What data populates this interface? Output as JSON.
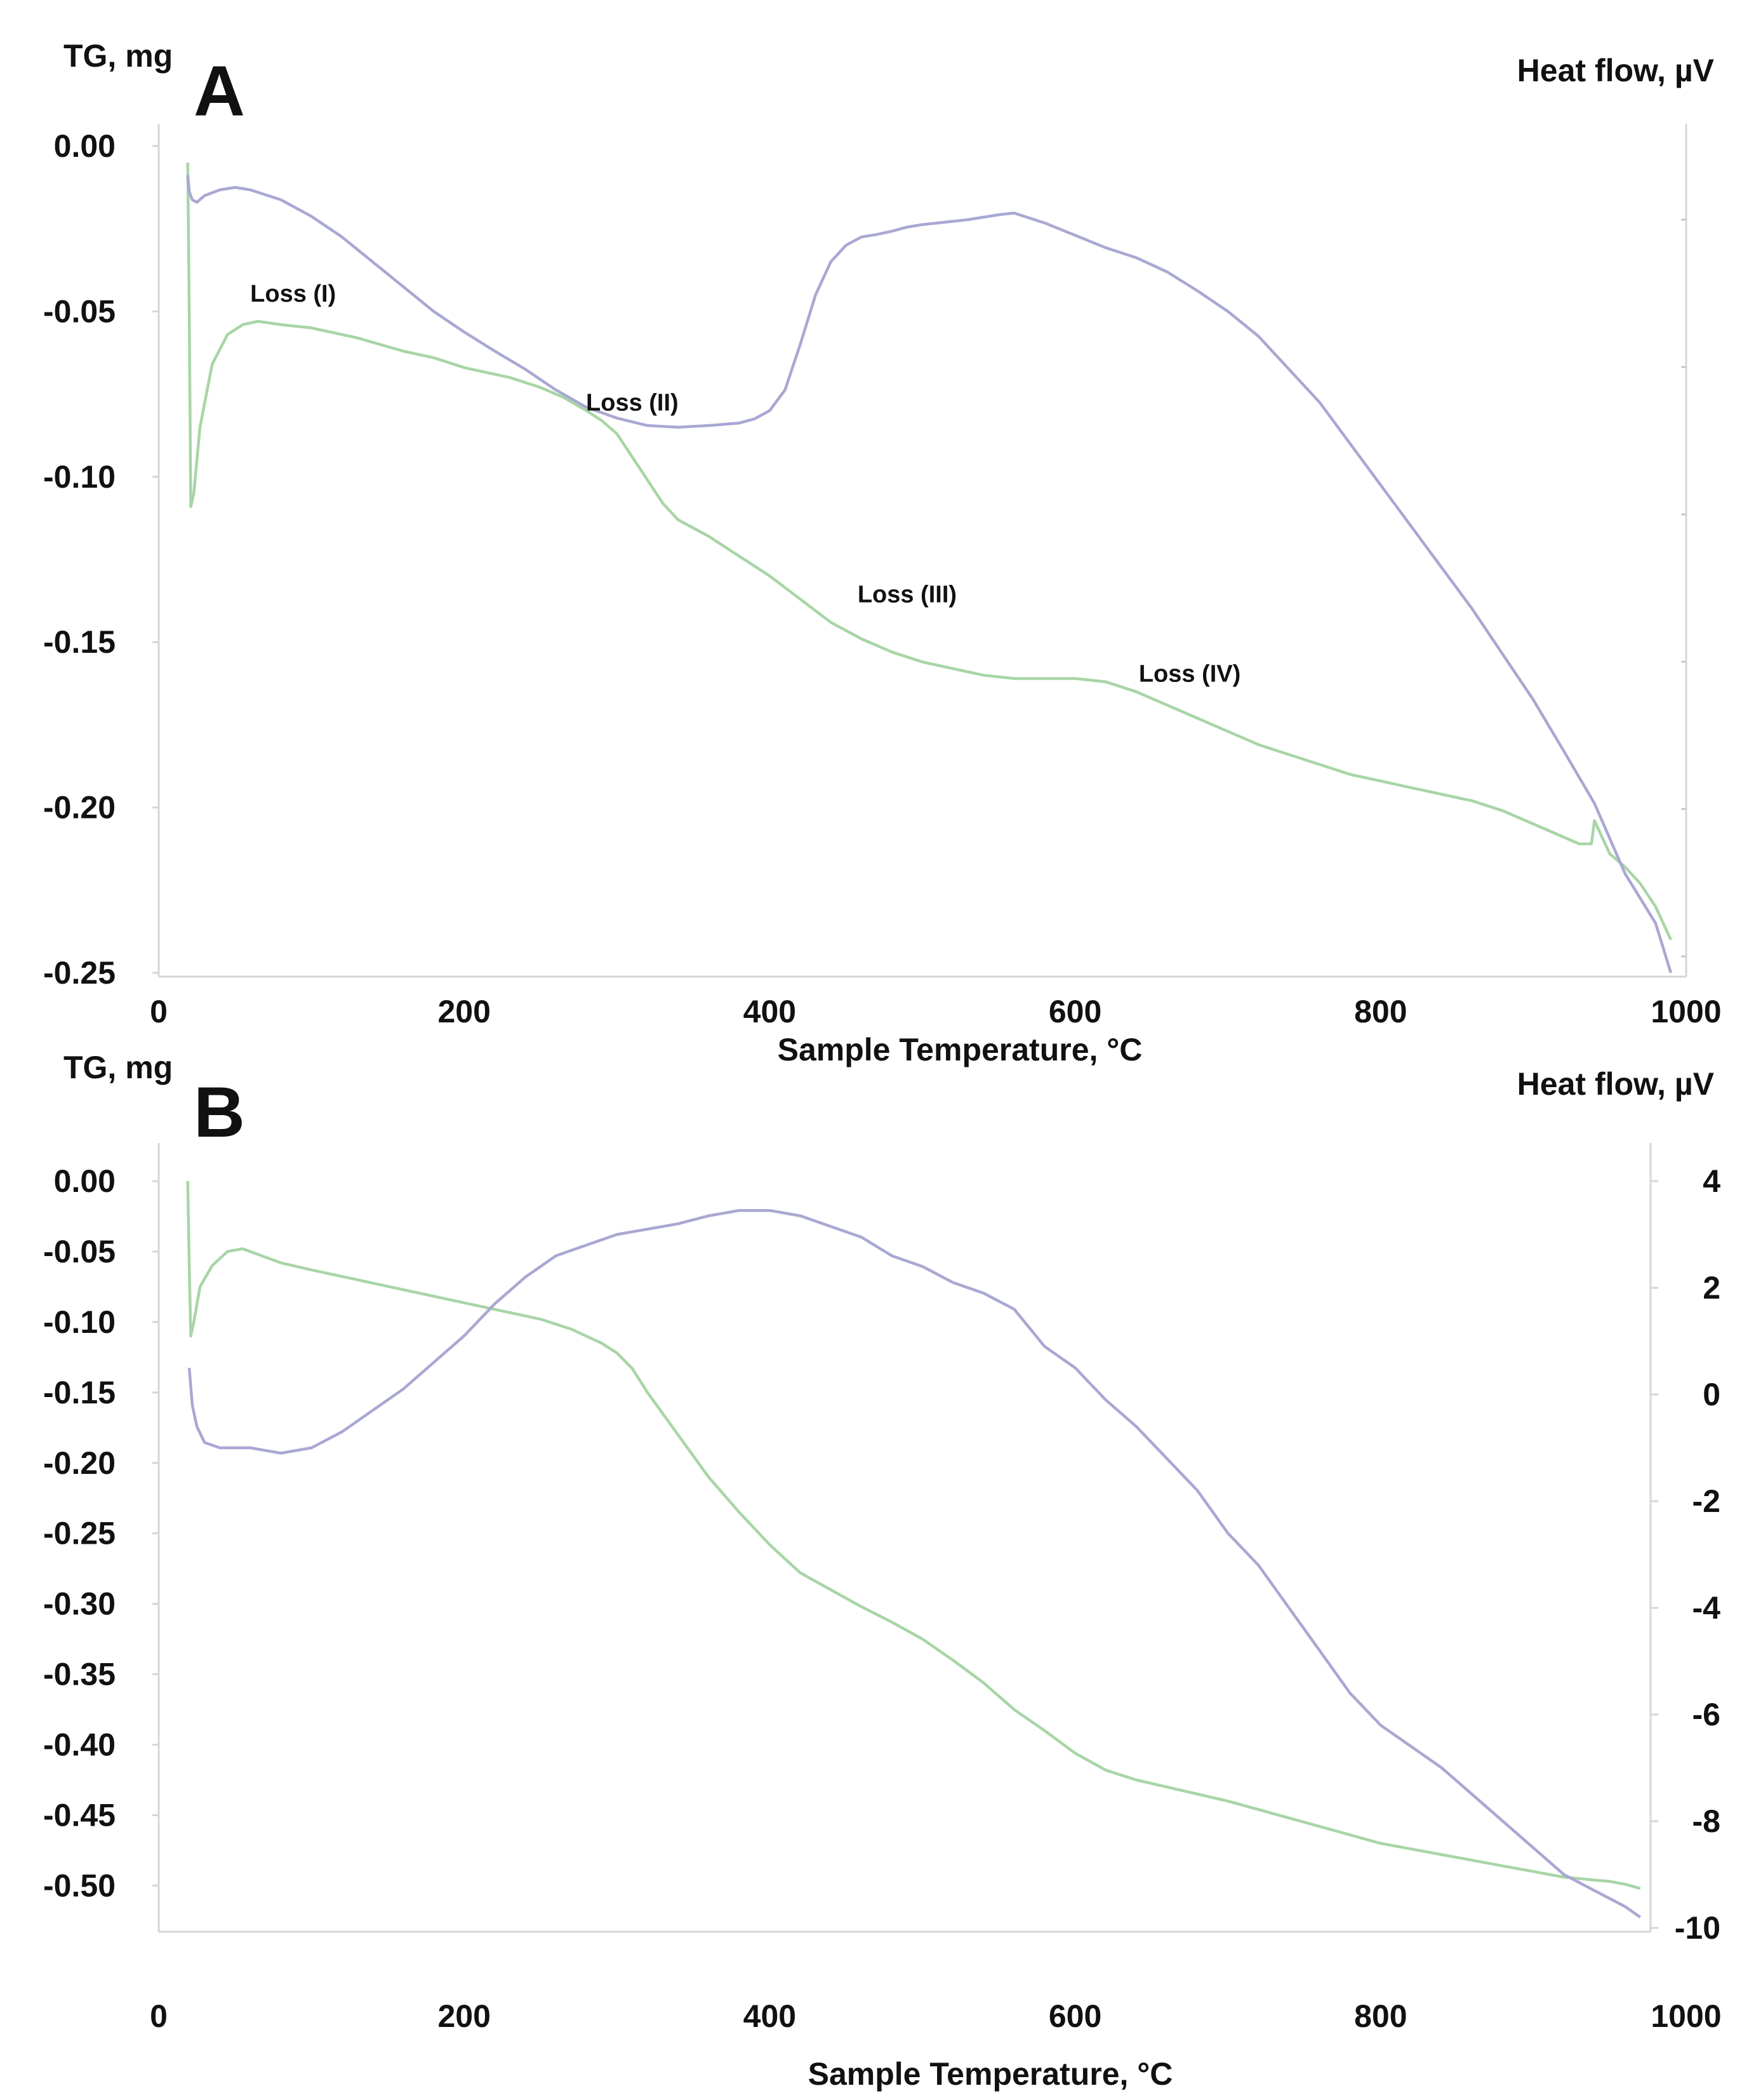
{
  "chart_data": [
    {
      "panel": "A",
      "type": "line",
      "xlabel": "Sample Temperature, °C",
      "ylabel_left": "TG, mg",
      "ylabel_right": "Heat flow, µV",
      "xlim": [
        0,
        1000
      ],
      "ylim_left": [
        -0.25,
        0.0
      ],
      "ylim_right": [
        0,
        1
      ],
      "x_ticks": [
        "0",
        "200",
        "400",
        "600",
        "800",
        "1000"
      ],
      "y_ticks_left": [
        "0.00",
        "-0.05",
        "-0.10",
        "-0.15",
        "-0.20",
        "-0.25"
      ],
      "y_ticks_right": [],
      "annotations": [
        {
          "text": "Loss (I)",
          "x": 88,
          "y": -0.047
        },
        {
          "text": "Loss (II)",
          "x": 310,
          "y": -0.08
        },
        {
          "text": "Loss (III)",
          "x": 490,
          "y": -0.138
        },
        {
          "text": "Loss (IV)",
          "x": 675,
          "y": -0.162
        }
      ],
      "series": [
        {
          "name": "TG",
          "axis": "left",
          "color": "#a8d5a6",
          "x": [
            19,
            20,
            21,
            23,
            27,
            35,
            45,
            55,
            65,
            80,
            100,
            130,
            160,
            180,
            200,
            230,
            250,
            265,
            280,
            290,
            300,
            310,
            320,
            330,
            340,
            360,
            380,
            400,
            420,
            440,
            460,
            480,
            500,
            520,
            540,
            560,
            580,
            600,
            620,
            640,
            660,
            680,
            700,
            720,
            740,
            760,
            780,
            800,
            820,
            840,
            860,
            880,
            900,
            920,
            930,
            938,
            940,
            945,
            950,
            960,
            970,
            980,
            990
          ],
          "values": [
            -0.005,
            -0.05,
            -0.109,
            -0.105,
            -0.085,
            -0.066,
            -0.057,
            -0.054,
            -0.053,
            -0.054,
            -0.055,
            -0.058,
            -0.062,
            -0.064,
            -0.067,
            -0.07,
            -0.073,
            -0.076,
            -0.08,
            -0.083,
            -0.087,
            -0.094,
            -0.101,
            -0.108,
            -0.113,
            -0.118,
            -0.124,
            -0.13,
            -0.137,
            -0.144,
            -0.149,
            -0.153,
            -0.156,
            -0.158,
            -0.16,
            -0.161,
            -0.161,
            -0.161,
            -0.162,
            -0.165,
            -0.169,
            -0.173,
            -0.177,
            -0.181,
            -0.184,
            -0.187,
            -0.19,
            -0.192,
            -0.194,
            -0.196,
            -0.198,
            -0.201,
            -0.205,
            -0.209,
            -0.211,
            -0.211,
            -0.204,
            -0.209,
            -0.214,
            -0.218,
            -0.223,
            -0.23,
            -0.24
          ]
        },
        {
          "name": "Heat flow",
          "axis": "right",
          "color": "#a9a8d3",
          "x": [
            19,
            20,
            22,
            25,
            30,
            40,
            50,
            60,
            80,
            100,
            120,
            140,
            160,
            180,
            200,
            220,
            240,
            260,
            280,
            300,
            320,
            340,
            360,
            380,
            390,
            400,
            410,
            420,
            430,
            440,
            450,
            460,
            470,
            480,
            490,
            500,
            510,
            520,
            530,
            540,
            550,
            560,
            580,
            600,
            620,
            640,
            660,
            680,
            700,
            720,
            740,
            760,
            780,
            800,
            820,
            840,
            860,
            880,
            900,
            920,
            940,
            960,
            980,
            990
          ],
          "values": [
            0.965,
            0.945,
            0.935,
            0.932,
            0.94,
            0.947,
            0.95,
            0.947,
            0.935,
            0.915,
            0.89,
            0.86,
            0.83,
            0.8,
            0.775,
            0.752,
            0.73,
            0.705,
            0.684,
            0.671,
            0.662,
            0.66,
            0.662,
            0.665,
            0.67,
            0.68,
            0.705,
            0.76,
            0.82,
            0.86,
            0.88,
            0.89,
            0.893,
            0.897,
            0.902,
            0.905,
            0.907,
            0.909,
            0.911,
            0.914,
            0.917,
            0.919,
            0.907,
            0.892,
            0.877,
            0.865,
            0.848,
            0.825,
            0.8,
            0.77,
            0.73,
            0.69,
            0.64,
            0.59,
            0.54,
            0.49,
            0.44,
            0.385,
            0.33,
            0.268,
            0.205,
            0.12,
            0.06,
            0.0
          ]
        }
      ]
    },
    {
      "panel": "B",
      "type": "line",
      "xlabel": "Sample Temperature, °C",
      "ylabel_left": "TG, mg",
      "ylabel_right": "Heat flow, µV",
      "xlim": [
        0,
        1000
      ],
      "ylim_left": [
        -0.53,
        0.0
      ],
      "ylim_right": [
        -10,
        4
      ],
      "x_ticks": [
        "0",
        "200",
        "400",
        "600",
        "800",
        "1000"
      ],
      "y_ticks_left": [
        "0.00",
        "-0.05",
        "-0.10",
        "-0.15",
        "-0.20",
        "-0.25",
        "-0.30",
        "-0.35",
        "-0.40",
        "-0.45",
        "-0.50"
      ],
      "y_ticks_right": [
        "4",
        "2",
        "0",
        "-2",
        "-4",
        "-6",
        "-8",
        "-10"
      ],
      "annotations": [],
      "series": [
        {
          "name": "TG",
          "axis": "left",
          "color": "#a8d5a6",
          "x": [
            19,
            20,
            21,
            23,
            27,
            35,
            45,
            55,
            65,
            80,
            100,
            130,
            160,
            190,
            220,
            250,
            270,
            290,
            300,
            310,
            320,
            340,
            360,
            380,
            400,
            420,
            440,
            460,
            480,
            500,
            520,
            540,
            560,
            580,
            600,
            620,
            640,
            660,
            680,
            700,
            720,
            740,
            760,
            780,
            800,
            820,
            840,
            860,
            880,
            900,
            920,
            940,
            950,
            960,
            970
          ],
          "values": [
            0.0,
            -0.06,
            -0.11,
            -0.1,
            -0.075,
            -0.06,
            -0.05,
            -0.048,
            -0.052,
            -0.058,
            -0.063,
            -0.07,
            -0.077,
            -0.084,
            -0.091,
            -0.098,
            -0.105,
            -0.115,
            -0.122,
            -0.133,
            -0.15,
            -0.18,
            -0.21,
            -0.235,
            -0.258,
            -0.278,
            -0.29,
            -0.302,
            -0.313,
            -0.325,
            -0.34,
            -0.356,
            -0.375,
            -0.39,
            -0.406,
            -0.418,
            -0.425,
            -0.43,
            -0.435,
            -0.44,
            -0.446,
            -0.452,
            -0.458,
            -0.464,
            -0.47,
            -0.474,
            -0.478,
            -0.482,
            -0.486,
            -0.49,
            -0.494,
            -0.496,
            -0.497,
            -0.499,
            -0.502
          ]
        },
        {
          "name": "Heat flow",
          "axis": "right",
          "color": "#a9a8d3",
          "x": [
            20,
            22,
            25,
            30,
            40,
            50,
            60,
            70,
            80,
            100,
            120,
            140,
            160,
            180,
            200,
            220,
            240,
            260,
            280,
            300,
            320,
            340,
            360,
            380,
            400,
            420,
            440,
            460,
            480,
            500,
            520,
            540,
            560,
            580,
            600,
            620,
            640,
            660,
            680,
            700,
            720,
            740,
            760,
            780,
            800,
            820,
            840,
            860,
            880,
            900,
            920,
            940,
            960,
            970
          ],
          "values": [
            0.5,
            -0.2,
            -0.6,
            -0.9,
            -1.0,
            -1.0,
            -1.0,
            -1.05,
            -1.1,
            -1.0,
            -0.7,
            -0.3,
            0.1,
            0.6,
            1.1,
            1.7,
            2.2,
            2.6,
            2.8,
            3.0,
            3.1,
            3.2,
            3.35,
            3.45,
            3.45,
            3.35,
            3.15,
            2.95,
            2.6,
            2.4,
            2.1,
            1.9,
            1.6,
            0.9,
            0.5,
            -0.1,
            -0.6,
            -1.2,
            -1.8,
            -2.6,
            -3.2,
            -4.0,
            -4.8,
            -5.6,
            -6.2,
            -6.6,
            -7.0,
            -7.5,
            -8.0,
            -8.5,
            -9.0,
            -9.3,
            -9.6,
            -9.8
          ]
        }
      ]
    }
  ]
}
